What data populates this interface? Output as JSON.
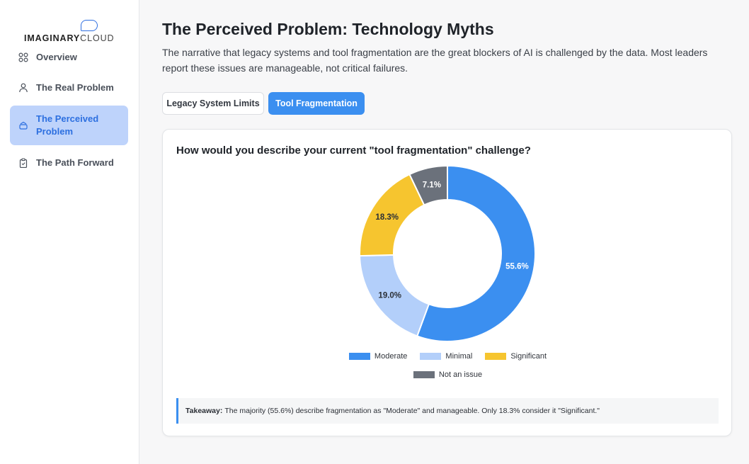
{
  "brand": {
    "part1": "IMAGINARY",
    "part2": "CLOUD"
  },
  "sidebar": {
    "items": [
      {
        "label": "Overview",
        "icon": "grid-icon",
        "active": false
      },
      {
        "label": "The Real Problem",
        "icon": "user-icon",
        "active": false
      },
      {
        "label": "The Perceived Problem",
        "icon": "layers-icon",
        "active": true
      },
      {
        "label": "The Path Forward",
        "icon": "clipboard-icon",
        "active": false
      }
    ]
  },
  "header": {
    "title": "The Perceived Problem: Technology Myths",
    "description": "The narrative that legacy systems and tool fragmentation are the great blockers of AI is challenged by the data. Most leaders report these issues are manageable, not critical failures."
  },
  "tabs": [
    {
      "label": "Legacy System Limits",
      "active": false
    },
    {
      "label": "Tool Fragmentation",
      "active": true
    }
  ],
  "card": {
    "title": "How would you describe your current \"tool fragmentation\" challenge?",
    "takeaway_label": "Takeaway:",
    "takeaway_text": "The majority (55.6%) describe fragmentation as \"Moderate\" and manageable. Only 18.3% consider it \"Significant.\""
  },
  "chart_data": {
    "type": "pie",
    "categories": [
      "Moderate",
      "Minimal",
      "Significant",
      "Not an issue"
    ],
    "values": [
      55.6,
      19.0,
      18.3,
      7.1
    ],
    "labels": [
      "55.6%",
      "19.0%",
      "18.3%",
      "7.1%"
    ],
    "colors": [
      "#3b8ff0",
      "#b3cffa",
      "#f6c52f",
      "#6b717b"
    ],
    "label_colors": [
      "#ffffff",
      "#2b2f36",
      "#2b2f36",
      "#ffffff"
    ],
    "donut": true,
    "legend_position": "bottom"
  }
}
